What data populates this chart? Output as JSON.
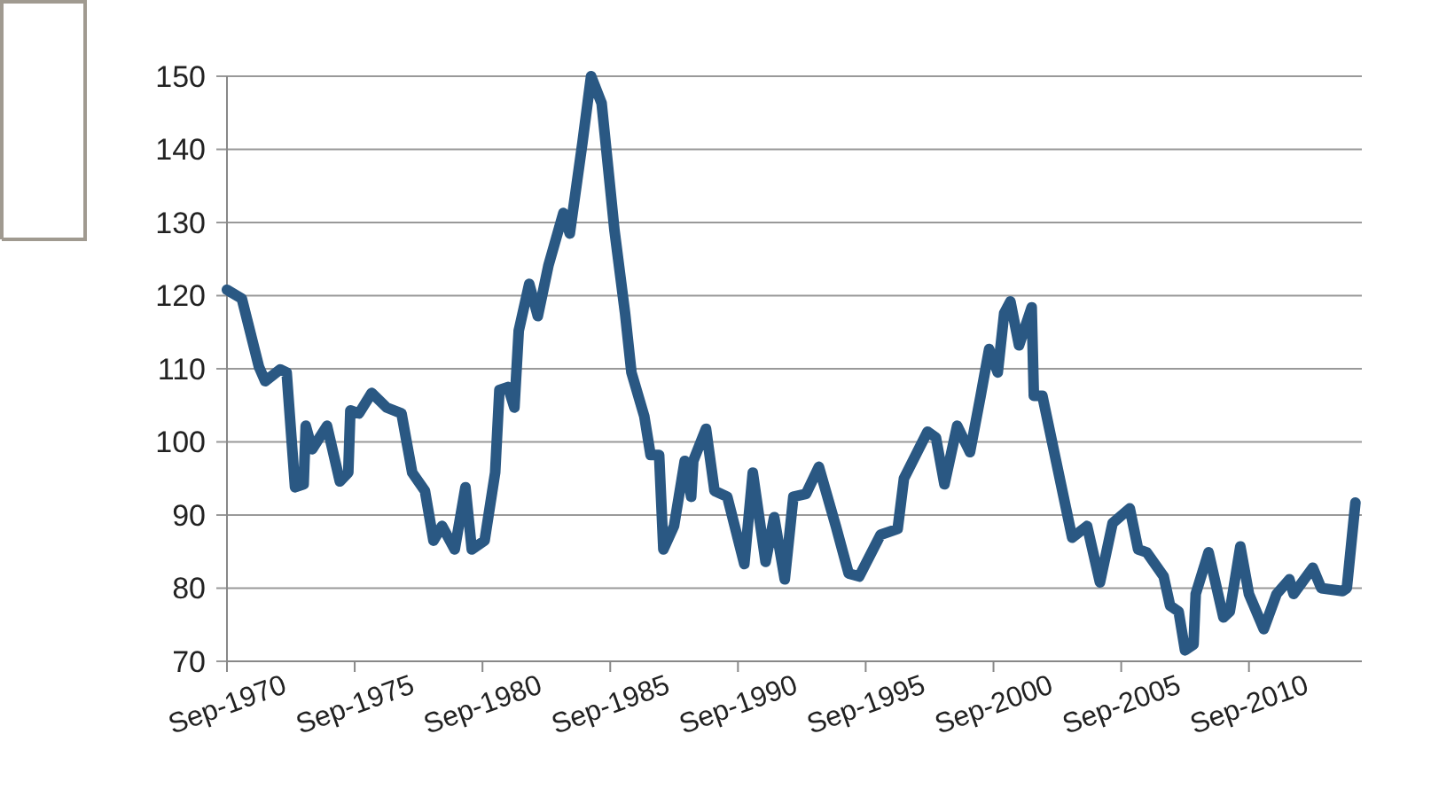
{
  "chart_data": {
    "type": "line",
    "grid": "y",
    "line_style": "solid",
    "marker": "none",
    "xlim": [
      "1970-09",
      "2015-02"
    ],
    "xticks": [
      {
        "value": "1970-09",
        "label": "Sep-1970"
      },
      {
        "value": "1975-09",
        "label": "Sep-1975"
      },
      {
        "value": "1980-09",
        "label": "Sep-1980"
      },
      {
        "value": "1985-09",
        "label": "Sep-1985"
      },
      {
        "value": "1990-09",
        "label": "Sep-1990"
      },
      {
        "value": "1995-09",
        "label": "Sep-1995"
      },
      {
        "value": "2000-09",
        "label": "Sep-2000"
      },
      {
        "value": "2005-09",
        "label": "Sep-2005"
      },
      {
        "value": "2010-09",
        "label": "Sep-2010"
      }
    ],
    "ylim": [
      70,
      150
    ],
    "yticks": [
      70,
      80,
      90,
      100,
      110,
      120,
      130,
      140,
      150
    ],
    "series": [
      {
        "color": "#2a5883",
        "x": [
          "1970-09",
          "1971-04",
          "1971-12",
          "1972-03",
          "1972-10",
          "1973-01",
          "1973-05",
          "1973-09",
          "1973-10",
          "1974-01",
          "1974-08",
          "1975-02",
          "1975-06",
          "1975-07",
          "1975-11",
          "1976-05",
          "1976-12",
          "1977-07",
          "1977-12",
          "1978-06",
          "1978-10",
          "1979-02",
          "1979-08",
          "1980-01",
          "1980-04",
          "1980-10",
          "1981-03",
          "1981-05",
          "1981-09",
          "1981-12",
          "1982-02",
          "1982-07",
          "1982-11",
          "1983-04",
          "1983-11",
          "1984-02",
          "1984-08",
          "1984-12",
          "1985-05",
          "1985-11",
          "1986-04",
          "1986-07",
          "1987-01",
          "1987-04",
          "1987-08",
          "1987-10",
          "1988-03",
          "1988-08",
          "1988-11",
          "1988-12",
          "1989-06",
          "1989-10",
          "1990-04",
          "1990-12",
          "1991-04",
          "1991-10",
          "1992-02",
          "1992-07",
          "1992-11",
          "1993-05",
          "1993-11",
          "1994-07",
          "1995-01",
          "1995-06",
          "1996-04",
          "1996-12",
          "1997-03",
          "1998-02",
          "1998-06",
          "1998-10",
          "1999-04",
          "1999-10",
          "2000-03",
          "2000-07",
          "2000-11",
          "2001-02",
          "2001-05",
          "2001-09",
          "2002-03",
          "2002-04",
          "2002-08",
          "2003-10",
          "2004-05",
          "2004-11",
          "2005-05",
          "2006-01",
          "2006-05",
          "2006-09",
          "2007-05",
          "2007-08",
          "2007-12",
          "2008-03",
          "2008-07",
          "2008-08",
          "2009-02",
          "2009-09",
          "2009-12",
          "2010-05",
          "2010-09",
          "2011-04",
          "2011-10",
          "2012-04",
          "2012-06",
          "2013-03",
          "2013-07",
          "2014-05",
          "2014-07",
          "2014-11"
        ],
        "values": [
          120.8,
          119.6,
          110.3,
          108.3,
          109.9,
          109.5,
          93.8,
          94.2,
          102.2,
          99,
          102.2,
          94.6,
          95.8,
          104.3,
          103.9,
          106.7,
          104.7,
          103.9,
          95.8,
          93.3,
          86.5,
          88.5,
          85.3,
          93.8,
          85.3,
          86.5,
          95.8,
          107.1,
          107.5,
          104.7,
          115.2,
          121.6,
          117.2,
          124.1,
          131.3,
          128.5,
          141,
          150,
          146.3,
          128.9,
          117.6,
          109.5,
          103.5,
          98.2,
          98.2,
          85.3,
          88.5,
          97.4,
          92.5,
          97.4,
          101.8,
          93.3,
          92.5,
          83.3,
          95.8,
          83.6,
          89.7,
          81.2,
          92.5,
          92.9,
          96.6,
          88.5,
          82,
          81.6,
          87.3,
          88.1,
          95,
          101.4,
          100.6,
          94.2,
          102.2,
          98.6,
          106.3,
          112.7,
          109.5,
          117.6,
          119.2,
          113.2,
          118.4,
          106.3,
          106.3,
          86.9,
          88.5,
          80.8,
          88.9,
          90.9,
          85.3,
          84.9,
          81.6,
          77.6,
          76.8,
          71.5,
          72.3,
          79.2,
          84.9,
          76,
          76.8,
          85.7,
          79.2,
          74.4,
          79.2,
          81.2,
          79.2,
          82.8,
          80,
          79.6,
          80,
          91.7
        ]
      }
    ]
  }
}
